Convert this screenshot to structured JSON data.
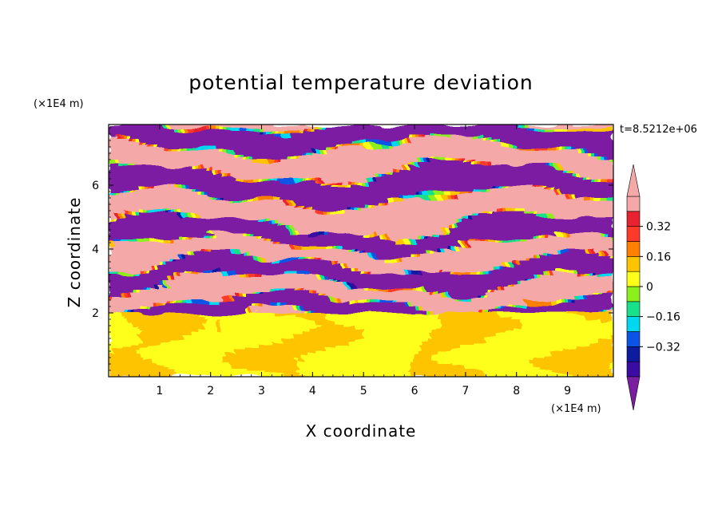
{
  "chart_data": {
    "type": "heatmap",
    "title": "potential temperature deviation",
    "xlabel": "X coordinate",
    "ylabel": "Z coordinate",
    "x_unit_label": "(×1E4 m)",
    "y_unit_label": "(×1E4 m)",
    "time_label": "t=8.5212e+06",
    "xlim": [
      0,
      9.9
    ],
    "ylim": [
      0,
      7.9
    ],
    "x_ticks": [
      1,
      2,
      3,
      4,
      5,
      6,
      7,
      8,
      9
    ],
    "y_ticks": [
      2,
      4,
      6
    ],
    "colorbar": {
      "levels": [
        -0.48,
        -0.4,
        -0.32,
        -0.24,
        -0.16,
        -0.08,
        0,
        0.08,
        0.16,
        0.24,
        0.32,
        0.4,
        0.48
      ],
      "colors": [
        "#7b1fa2",
        "#3a0ca3",
        "#0d1b9e",
        "#0b55e6",
        "#00d7f0",
        "#19e08a",
        "#8df01c",
        "#ffff1a",
        "#ffc400",
        "#ff7f00",
        "#ff3a2a",
        "#e8232f",
        "#f4a8a8"
      ],
      "tick_labels": [
        "0.32",
        "0.16",
        "0",
        "−0.16",
        "−0.32"
      ],
      "tick_values": [
        0.32,
        0.16,
        0,
        -0.16,
        -0.32
      ],
      "extend": "both",
      "under_color": "#7b1fa2",
      "over_color": "#f4a8a8"
    },
    "regions": {
      "lower_layer": {
        "z_range": [
          0,
          2.0
        ],
        "dominant_values": [
          0.04,
          0.08
        ],
        "description_colors": [
          "#19e08a",
          "#8df01c"
        ]
      },
      "upper_layer": {
        "z_range": [
          2.0,
          7.9
        ],
        "pattern": "alternating horizontal bands",
        "band_values": [
          0.5,
          -0.5
        ]
      }
    }
  }
}
